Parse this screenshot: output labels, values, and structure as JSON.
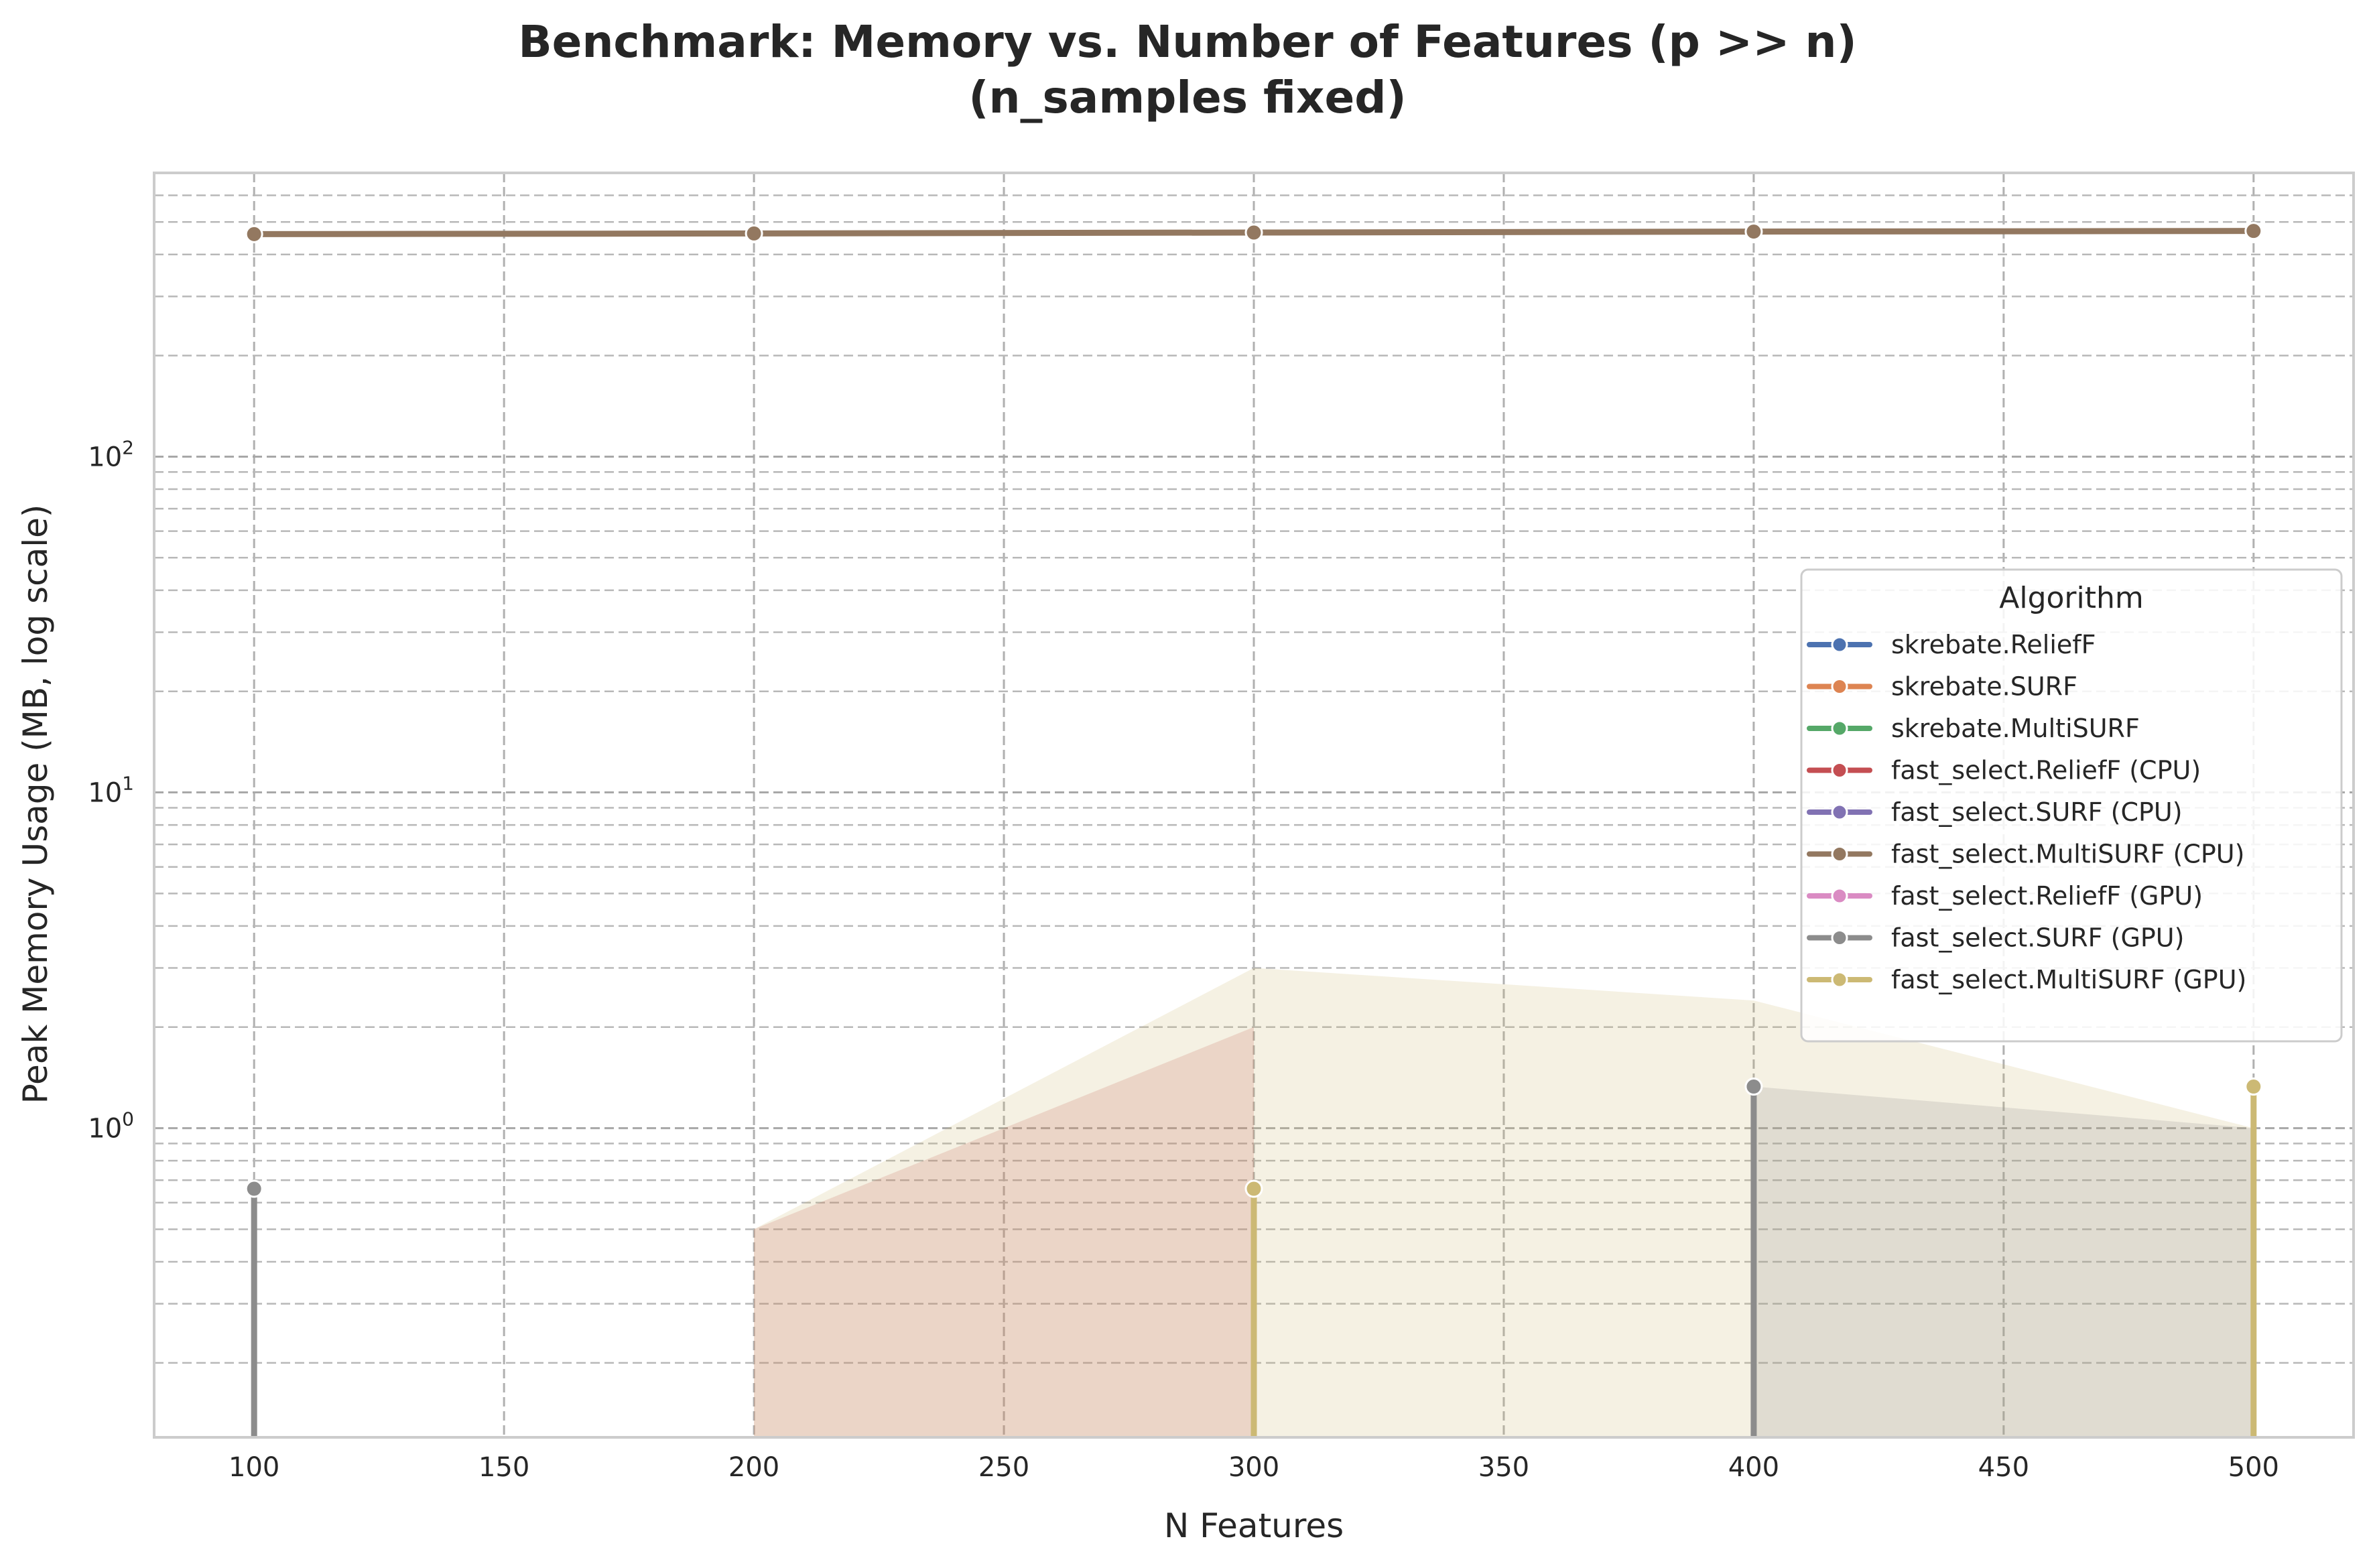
{
  "chart_data": {
    "type": "line",
    "title_lines": [
      "Benchmark: Memory vs. Number of Features (p >> n)",
      "(n_samples fixed)"
    ],
    "xlabel": "N Features",
    "ylabel": "Peak Memory Usage (MB, log scale)",
    "xlim": [
      80,
      520
    ],
    "ylim": [
      0.12,
      700
    ],
    "yscale": "log",
    "xticks": [
      100,
      150,
      200,
      250,
      300,
      350,
      400,
      450,
      500
    ],
    "yticks": [
      {
        "value": 1,
        "base": "10",
        "exp": "0"
      },
      {
        "value": 10,
        "base": "10",
        "exp": "1"
      },
      {
        "value": 100,
        "base": "10",
        "exp": "2"
      }
    ],
    "grid": true,
    "legend": {
      "title": "Algorithm",
      "placement": "center-right"
    },
    "x": [
      100,
      200,
      300,
      400,
      500
    ],
    "series": [
      {
        "name": "skrebate.ReliefF",
        "color": "#4c72b0",
        "values": [
          null,
          null,
          null,
          null,
          null
        ]
      },
      {
        "name": "skrebate.SURF",
        "color": "#dd8452",
        "values": [
          null,
          null,
          null,
          null,
          null
        ]
      },
      {
        "name": "skrebate.MultiSURF",
        "color": "#55a868",
        "values": [
          null,
          null,
          null,
          null,
          null
        ]
      },
      {
        "name": "fast_select.ReliefF (CPU)",
        "color": "#c44e52",
        "values": [
          null,
          null,
          null,
          null,
          null
        ]
      },
      {
        "name": "fast_select.SURF (CPU)",
        "color": "#8172b3",
        "values": [
          null,
          null,
          null,
          null,
          null
        ]
      },
      {
        "name": "fast_select.MultiSURF (CPU)",
        "color": "#937860",
        "values": [
          460,
          462,
          465,
          468,
          470
        ]
      },
      {
        "name": "fast_select.ReliefF (GPU)",
        "color": "#da8bc3",
        "values": [
          null,
          null,
          null,
          null,
          null
        ]
      },
      {
        "name": "fast_select.SURF (GPU)",
        "color": "#8c8c8c",
        "values": [
          0.66,
          null,
          null,
          1.33,
          null
        ]
      },
      {
        "name": "fast_select.MultiSURF (GPU)",
        "color": "#ccb974",
        "values": [
          null,
          null,
          0.66,
          null,
          1.33
        ]
      }
    ],
    "bands": [
      {
        "color": "#c44e52",
        "opacity": 0.2,
        "x": [
          200,
          300
        ],
        "lower": [
          0.12,
          0.12
        ],
        "upper": [
          0.5,
          2.0
        ]
      },
      {
        "color": "#ccb974",
        "opacity": 0.2,
        "x": [
          200,
          300,
          400,
          500
        ],
        "lower": [
          0.12,
          0.12,
          0.12,
          0.12
        ],
        "upper": [
          0.5,
          3.0,
          2.4,
          1.0
        ]
      },
      {
        "color": "#8c8c8c",
        "opacity": 0.2,
        "x": [
          400,
          500
        ],
        "lower": [
          0.12,
          0.12
        ],
        "upper": [
          1.33,
          1.0
        ]
      }
    ]
  }
}
